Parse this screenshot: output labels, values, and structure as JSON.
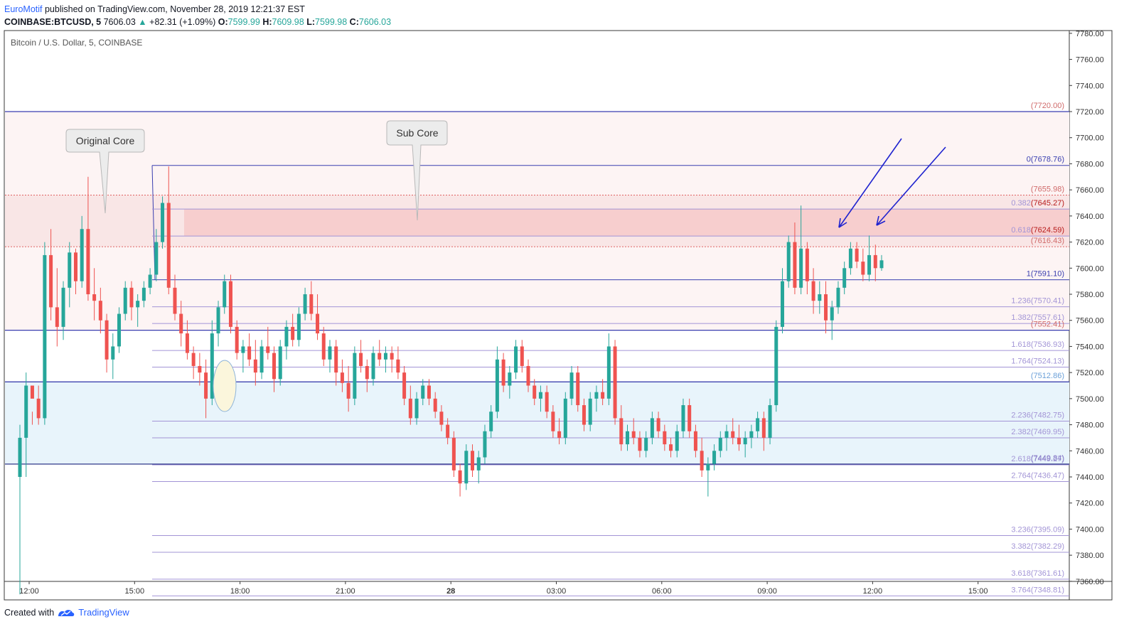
{
  "header": {
    "author": "EuroMotif",
    "published": " published on TradingView.com, November 28, 2019 12:21:37 EST",
    "symbol": "COINBASE:BTCUSD, 5",
    "last": "7606.03",
    "change": "+82.31 (+1.09%)",
    "o_label": "O:",
    "o": "7599.99",
    "h_label": "H:",
    "h": "7609.98",
    "l_label": "L:",
    "l": "7599.98",
    "c_label": "C:",
    "c": "7606.03"
  },
  "footer": {
    "created": "Created with",
    "brand": "TradingView"
  },
  "colors": {
    "up": "#26a69a",
    "down": "#ef5350",
    "fib": "#a294d6",
    "redzone": "#f5c6c6",
    "bluezone": "#e8f4fb",
    "level_blue": "#1a237e",
    "arrow": "#1e22cf"
  },
  "chart_data": {
    "type": "candlestick",
    "title": "Bitcoin / U.S. Dollar, 5, COINBASE",
    "ylim": [
      7350,
      7790
    ],
    "y_ticks": [
      7360,
      7380,
      7400,
      7420,
      7440,
      7460,
      7480,
      7500,
      7520,
      7540,
      7560,
      7580,
      7600,
      7620,
      7640,
      7660,
      7680,
      7700,
      7720,
      7740,
      7760,
      7780
    ],
    "y_tick_labels": [
      "7360.00",
      "7380.00",
      "7400.00",
      "7420.00",
      "7440.00",
      "7460.00",
      "7480.00",
      "7500.00",
      "7520.00",
      "7540.00",
      "7560.00",
      "7580.00",
      "7600.00",
      "7620.00",
      "7640.00",
      "7660.00",
      "7680.00",
      "7700.00",
      "7720.00",
      "7740.00",
      "7760.00",
      "7780.00"
    ],
    "x_ticks": [
      "12:00",
      "15:00",
      "18:00",
      "21:00",
      "28",
      "03:00",
      "06:00",
      "09:00",
      "12:00",
      "15:00"
    ],
    "series": [
      {
        "values": [
          [
            7440,
            7480,
            7350,
            7470
          ],
          [
            7470,
            7520,
            7440,
            7510
          ],
          [
            7510,
            7490,
            7480,
            7500
          ],
          [
            7500,
            7510,
            7480,
            7485
          ],
          [
            7485,
            7620,
            7480,
            7610
          ],
          [
            7610,
            7630,
            7560,
            7570
          ],
          [
            7570,
            7600,
            7540,
            7555
          ],
          [
            7555,
            7590,
            7545,
            7585
          ],
          [
            7585,
            7620,
            7570,
            7612
          ],
          [
            7612,
            7615,
            7580,
            7590
          ],
          [
            7590,
            7640,
            7585,
            7630
          ],
          [
            7630,
            7670,
            7575,
            7580
          ],
          [
            7580,
            7600,
            7560,
            7575
          ],
          [
            7575,
            7585,
            7550,
            7560
          ],
          [
            7560,
            7565,
            7520,
            7530
          ],
          [
            7530,
            7550,
            7515,
            7540
          ],
          [
            7540,
            7570,
            7535,
            7565
          ],
          [
            7565,
            7590,
            7560,
            7585
          ],
          [
            7585,
            7590,
            7560,
            7570
          ],
          [
            7570,
            7580,
            7555,
            7575
          ],
          [
            7575,
            7590,
            7570,
            7585
          ],
          [
            7585,
            7600,
            7580,
            7595
          ],
          [
            7595,
            7630,
            7590,
            7620
          ],
          [
            7620,
            7655,
            7615,
            7650
          ],
          [
            7650,
            7678,
            7580,
            7585
          ],
          [
            7585,
            7595,
            7560,
            7565
          ],
          [
            7565,
            7575,
            7540,
            7550
          ],
          [
            7550,
            7560,
            7530,
            7535
          ],
          [
            7535,
            7540,
            7515,
            7525
          ],
          [
            7525,
            7535,
            7510,
            7520
          ],
          [
            7520,
            7530,
            7485,
            7500
          ],
          [
            7500,
            7560,
            7495,
            7550
          ],
          [
            7550,
            7575,
            7540,
            7570
          ],
          [
            7570,
            7595,
            7565,
            7590
          ],
          [
            7590,
            7595,
            7550,
            7555
          ],
          [
            7555,
            7560,
            7530,
            7535
          ],
          [
            7535,
            7545,
            7520,
            7540
          ],
          [
            7540,
            7550,
            7525,
            7530
          ],
          [
            7530,
            7545,
            7510,
            7520
          ],
          [
            7520,
            7545,
            7515,
            7540
          ],
          [
            7540,
            7555,
            7530,
            7535
          ],
          [
            7535,
            7540,
            7505,
            7515
          ],
          [
            7515,
            7545,
            7510,
            7540
          ],
          [
            7540,
            7560,
            7530,
            7555
          ],
          [
            7555,
            7565,
            7540,
            7545
          ],
          [
            7545,
            7570,
            7540,
            7565
          ],
          [
            7565,
            7585,
            7560,
            7580
          ],
          [
            7580,
            7590,
            7560,
            7565
          ],
          [
            7565,
            7580,
            7545,
            7550
          ],
          [
            7550,
            7555,
            7525,
            7530
          ],
          [
            7530,
            7545,
            7520,
            7540
          ],
          [
            7540,
            7545,
            7510,
            7520
          ],
          [
            7520,
            7530,
            7505,
            7512
          ],
          [
            7512,
            7525,
            7490,
            7500
          ],
          [
            7500,
            7540,
            7495,
            7535
          ],
          [
            7535,
            7545,
            7520,
            7525
          ],
          [
            7525,
            7530,
            7505,
            7515
          ],
          [
            7515,
            7540,
            7510,
            7535
          ],
          [
            7535,
            7545,
            7525,
            7530
          ],
          [
            7530,
            7540,
            7520,
            7535
          ],
          [
            7535,
            7540,
            7520,
            7530
          ],
          [
            7530,
            7540,
            7515,
            7520
          ],
          [
            7520,
            7525,
            7495,
            7500
          ],
          [
            7500,
            7510,
            7480,
            7485
          ],
          [
            7485,
            7505,
            7480,
            7500
          ],
          [
            7500,
            7515,
            7495,
            7510
          ],
          [
            7510,
            7515,
            7495,
            7500
          ],
          [
            7500,
            7505,
            7485,
            7490
          ],
          [
            7490,
            7495,
            7475,
            7480
          ],
          [
            7480,
            7485,
            7465,
            7470
          ],
          [
            7470,
            7475,
            7440,
            7445
          ],
          [
            7445,
            7450,
            7425,
            7435
          ],
          [
            7435,
            7465,
            7430,
            7460
          ],
          [
            7460,
            7465,
            7440,
            7445
          ],
          [
            7445,
            7460,
            7435,
            7455
          ],
          [
            7455,
            7480,
            7450,
            7475
          ],
          [
            7475,
            7495,
            7470,
            7490
          ],
          [
            7490,
            7540,
            7485,
            7530
          ],
          [
            7530,
            7535,
            7505,
            7510
          ],
          [
            7510,
            7525,
            7500,
            7520
          ],
          [
            7520,
            7545,
            7515,
            7540
          ],
          [
            7540,
            7545,
            7520,
            7525
          ],
          [
            7525,
            7530,
            7505,
            7510
          ],
          [
            7510,
            7515,
            7495,
            7500
          ],
          [
            7500,
            7510,
            7490,
            7505
          ],
          [
            7505,
            7510,
            7485,
            7490
          ],
          [
            7490,
            7495,
            7470,
            7475
          ],
          [
            7475,
            7485,
            7465,
            7470
          ],
          [
            7470,
            7505,
            7465,
            7500
          ],
          [
            7500,
            7525,
            7495,
            7520
          ],
          [
            7520,
            7525,
            7490,
            7495
          ],
          [
            7495,
            7500,
            7475,
            7480
          ],
          [
            7480,
            7505,
            7475,
            7500
          ],
          [
            7500,
            7510,
            7490,
            7505
          ],
          [
            7505,
            7515,
            7495,
            7500
          ],
          [
            7500,
            7550,
            7495,
            7540
          ],
          [
            7540,
            7545,
            7480,
            7485
          ],
          [
            7485,
            7495,
            7460,
            7465
          ],
          [
            7465,
            7480,
            7460,
            7475
          ],
          [
            7475,
            7485,
            7465,
            7470
          ],
          [
            7470,
            7475,
            7455,
            7460
          ],
          [
            7460,
            7475,
            7455,
            7470
          ],
          [
            7470,
            7490,
            7465,
            7485
          ],
          [
            7485,
            7490,
            7470,
            7475
          ],
          [
            7475,
            7480,
            7460,
            7465
          ],
          [
            7465,
            7470,
            7455,
            7460
          ],
          [
            7460,
            7480,
            7455,
            7475
          ],
          [
            7475,
            7500,
            7470,
            7495
          ],
          [
            7495,
            7500,
            7470,
            7475
          ],
          [
            7475,
            7480,
            7455,
            7460
          ],
          [
            7460,
            7470,
            7440,
            7445
          ],
          [
            7445,
            7455,
            7425,
            7450
          ],
          [
            7450,
            7465,
            7445,
            7460
          ],
          [
            7460,
            7475,
            7455,
            7470
          ],
          [
            7470,
            7480,
            7460,
            7475
          ],
          [
            7475,
            7485,
            7465,
            7470
          ],
          [
            7470,
            7480,
            7460,
            7465
          ],
          [
            7465,
            7475,
            7455,
            7470
          ],
          [
            7470,
            7480,
            7462,
            7475
          ],
          [
            7475,
            7490,
            7470,
            7485
          ],
          [
            7485,
            7490,
            7460,
            7470
          ],
          [
            7470,
            7500,
            7465,
            7495
          ],
          [
            7495,
            7560,
            7490,
            7555
          ],
          [
            7555,
            7600,
            7550,
            7590
          ],
          [
            7590,
            7625,
            7585,
            7620
          ],
          [
            7620,
            7635,
            7580,
            7585
          ],
          [
            7585,
            7648,
            7580,
            7615
          ],
          [
            7615,
            7620,
            7580,
            7590
          ],
          [
            7590,
            7600,
            7565,
            7575
          ],
          [
            7575,
            7590,
            7565,
            7580
          ],
          [
            7580,
            7590,
            7550,
            7560
          ],
          [
            7560,
            7575,
            7545,
            7570
          ],
          [
            7570,
            7590,
            7565,
            7585
          ],
          [
            7585,
            7605,
            7580,
            7600
          ],
          [
            7600,
            7620,
            7595,
            7615
          ],
          [
            7615,
            7620,
            7600,
            7605
          ],
          [
            7605,
            7615,
            7590,
            7595
          ],
          [
            7595,
            7625,
            7590,
            7610
          ],
          [
            7610,
            7618,
            7590,
            7600
          ],
          [
            7600,
            7610,
            7598,
            7606
          ]
        ]
      }
    ],
    "fib": {
      "levels": [
        {
          "ratio": "0",
          "price": 7678.76,
          "text": "0(7678.76)"
        },
        {
          "ratio": "0.382",
          "price": 7645.27,
          "text": "0.382",
          "ptext": "(7645.27)"
        },
        {
          "ratio": "0.618",
          "price": 7624.59,
          "text": "0.618",
          "ptext": "(7624.59)"
        },
        {
          "ratio": "1",
          "price": 7591.1,
          "text": "1(7591.10)"
        },
        {
          "ratio": "1.236",
          "price": 7570.41,
          "text": "1.236(7570.41)"
        },
        {
          "ratio": "1.382",
          "price": 7557.61,
          "text": "1.382(7557.61)"
        },
        {
          "ratio": "1.618",
          "price": 7536.93,
          "text": "1.618(7536.93)"
        },
        {
          "ratio": "1.764",
          "price": 7524.13,
          "text": "1.764(7524.13)"
        },
        {
          "ratio": "2.236",
          "price": 7482.75,
          "text": "2.236(7482.75)"
        },
        {
          "ratio": "2.382",
          "price": 7469.95,
          "text": "2.382(7469.95)"
        },
        {
          "ratio": "2.618",
          "price": 7449.27,
          "text": "2.618(7449.27)"
        },
        {
          "ratio": "2.764",
          "price": 7436.47,
          "text": "2.764(7436.47)"
        },
        {
          "ratio": "3.236",
          "price": 7395.09,
          "text": "3.236(7395.09)"
        },
        {
          "ratio": "3.382",
          "price": 7382.29,
          "text": "3.382(7382.29)"
        },
        {
          "ratio": "3.618",
          "price": 7361.61,
          "text": "3.618(7361.61)"
        },
        {
          "ratio": "3.764",
          "price": 7348.81,
          "text": "3.764(7348.81)"
        }
      ]
    },
    "price_labels": [
      {
        "price": 7720.0,
        "text": "(7720.00)"
      },
      {
        "price": 7655.98,
        "text": "(7655.98)"
      },
      {
        "price": 7616.43,
        "text": "(7616.43)"
      },
      {
        "price": 7552.41,
        "text": "(7552.41)"
      },
      {
        "price": 7512.86,
        "text": "(7512.86)"
      },
      {
        "price": 7449.84,
        "text": "(7449.84)"
      }
    ],
    "annotations": [
      "Original Core",
      "Sub Core"
    ]
  }
}
